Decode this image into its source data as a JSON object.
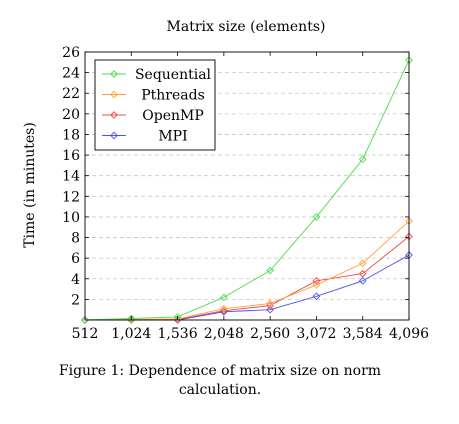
{
  "chart_data": {
    "type": "line",
    "title": "Matrix size (elements)",
    "xlabel": "",
    "ylabel": "Time (in minutes)",
    "x": [
      512,
      1024,
      1536,
      2048,
      2560,
      3072,
      3584,
      4096
    ],
    "x_tick_labels": [
      "512",
      "1,024",
      "1,536",
      "2,048",
      "2,560",
      "3,072",
      "3,584",
      "4,096"
    ],
    "xlim": [
      512,
      4096
    ],
    "ylim": [
      0,
      26
    ],
    "y_ticks": [
      2,
      4,
      6,
      8,
      10,
      12,
      14,
      16,
      18,
      20,
      22,
      24,
      26
    ],
    "grid": "horizontal dashed",
    "legend_position": "top-left",
    "series": [
      {
        "name": "Sequential",
        "color": "#4dde4d",
        "values": [
          0.0,
          0.15,
          0.3,
          2.2,
          4.8,
          10.0,
          15.6,
          25.2
        ]
      },
      {
        "name": "Pthreads",
        "color": "#ffa040",
        "values": [
          0.0,
          0.05,
          0.1,
          1.1,
          1.6,
          3.4,
          5.5,
          9.6
        ]
      },
      {
        "name": "OpenMP",
        "color": "#ef4a4a",
        "values": [
          0.0,
          0.05,
          0.05,
          0.9,
          1.4,
          3.8,
          4.5,
          8.1
        ]
      },
      {
        "name": "MPI",
        "color": "#5252e8",
        "values": [
          0.0,
          0.0,
          0.0,
          0.8,
          1.0,
          2.3,
          3.8,
          6.3
        ]
      }
    ]
  },
  "caption": "Figure 1: Dependence of matrix size on norm calculation."
}
